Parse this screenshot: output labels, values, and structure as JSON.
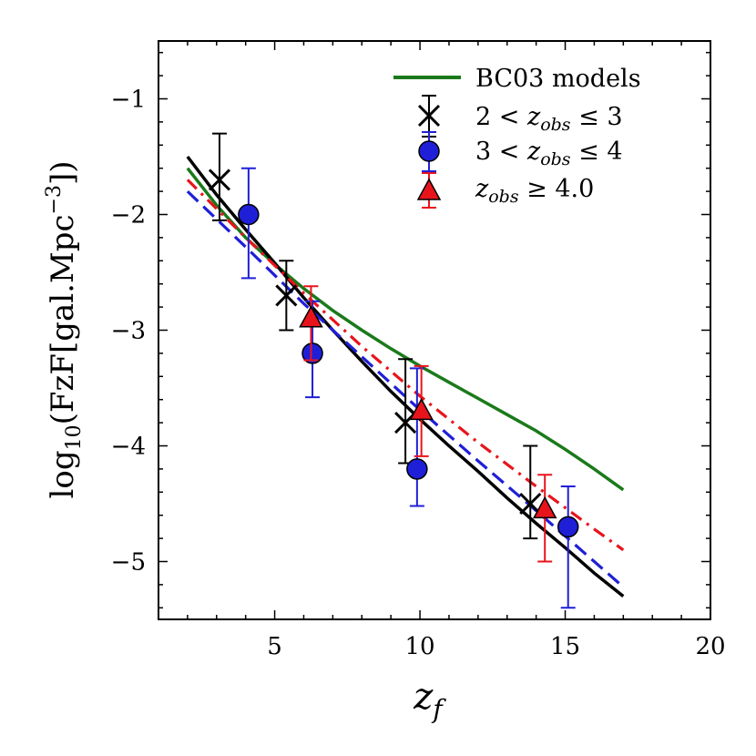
{
  "chart_data": {
    "type": "scatter",
    "title": "",
    "xlabel": "z_f",
    "ylabel": "log10(FzF[gal.Mpc^-3])",
    "xlim": [
      1.0,
      20.0
    ],
    "ylim": [
      -5.5,
      -0.5
    ],
    "xticks": [
      5,
      10,
      15,
      20
    ],
    "xtick_labels": [
      "5",
      "10",
      "15",
      "20"
    ],
    "yticks": [
      -1,
      -2,
      -3,
      -4,
      -5
    ],
    "ytick_labels": [
      "−1",
      "−2",
      "−3",
      "−4",
      "−5"
    ],
    "grid": false,
    "legend_position": "top-right",
    "lines": [
      {
        "name": "BC03 models",
        "color": "#1a7a1a",
        "style": "solid",
        "x": [
          2,
          3,
          4,
          5,
          6,
          7,
          8,
          9,
          10,
          11,
          12,
          13,
          14,
          15,
          16,
          17
        ],
        "y": [
          -1.6,
          -1.92,
          -2.2,
          -2.43,
          -2.64,
          -2.83,
          -3.0,
          -3.16,
          -3.31,
          -3.45,
          -3.59,
          -3.73,
          -3.87,
          -4.03,
          -4.2,
          -4.38
        ]
      },
      {
        "name": "fit-black",
        "color": "#000000",
        "style": "solid",
        "x": [
          2,
          3,
          4,
          5,
          6,
          7,
          8,
          9,
          10,
          11,
          12,
          13,
          14,
          15,
          16,
          17
        ],
        "y": [
          -1.5,
          -1.83,
          -2.13,
          -2.42,
          -2.72,
          -3.0,
          -3.27,
          -3.53,
          -3.77,
          -4.0,
          -4.22,
          -4.45,
          -4.67,
          -4.88,
          -5.1,
          -5.3
        ]
      },
      {
        "name": "fit-blue",
        "color": "#1f1fd8",
        "style": "dashed",
        "x": [
          2,
          4,
          6,
          8,
          10,
          12,
          14,
          16,
          17
        ],
        "y": [
          -1.8,
          -2.28,
          -2.77,
          -3.23,
          -3.69,
          -4.13,
          -4.56,
          -5.0,
          -5.22
        ]
      },
      {
        "name": "fit-red",
        "color": "#e8141c",
        "style": "dashdot",
        "x": [
          2,
          4,
          6,
          8,
          10,
          12,
          14,
          16,
          17
        ],
        "y": [
          -1.7,
          -2.2,
          -2.68,
          -3.14,
          -3.57,
          -3.97,
          -4.35,
          -4.72,
          -4.9
        ]
      }
    ],
    "series": [
      {
        "name": "2 < z_obs ≤ 3",
        "marker": "x",
        "color": "#000000",
        "x": [
          3.1,
          5.4,
          9.5,
          13.8
        ],
        "y": [
          -1.7,
          -2.7,
          -3.8,
          -4.5
        ],
        "err_low": [
          -2.05,
          -3.0,
          -4.15,
          -4.8
        ],
        "err_high": [
          -1.3,
          -2.4,
          -3.25,
          -4.0
        ]
      },
      {
        "name": "3 < z_obs ≤ 4",
        "marker": "circle",
        "color": "#1f1fd8",
        "x": [
          4.1,
          6.3,
          9.9,
          15.1
        ],
        "y": [
          -2.0,
          -3.2,
          -4.2,
          -4.7
        ],
        "err_low": [
          -2.55,
          -3.58,
          -4.52,
          -5.4
        ],
        "err_high": [
          -1.6,
          -2.75,
          -3.33,
          -4.35
        ]
      },
      {
        "name": "z_obs ≥ 4.0",
        "marker": "triangle",
        "color": "#e8141c",
        "x": [
          6.25,
          10.05,
          14.3
        ],
        "y": [
          -2.9,
          -3.7,
          -4.55
        ],
        "err_low": [
          -3.26,
          -4.09,
          -5.0
        ],
        "err_high": [
          -2.62,
          -3.31,
          -4.25
        ]
      }
    ],
    "legend": [
      {
        "label": "BC03 models",
        "kind": "line",
        "color": "#1a7a1a"
      },
      {
        "label": "2 < z_obs ≤ 3",
        "kind": "x",
        "color": "#000000"
      },
      {
        "label": "3 < z_obs ≤ 4",
        "kind": "circle",
        "color": "#1f1fd8"
      },
      {
        "label": "z_obs ≥ 4.0",
        "kind": "triangle",
        "color": "#e8141c"
      }
    ]
  }
}
